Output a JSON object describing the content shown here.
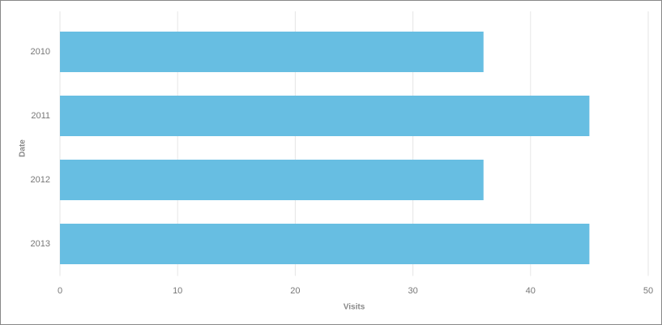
{
  "chart_data": {
    "type": "bar",
    "orientation": "horizontal",
    "x_label": "Visits",
    "y_label": "Date",
    "categories": [
      "2010",
      "2011",
      "2012",
      "2013"
    ],
    "values": [
      36,
      45,
      36,
      45
    ],
    "color": "#67bee2",
    "xlim": [
      0,
      50
    ],
    "xticks": [
      0,
      10,
      20,
      30,
      40,
      50
    ],
    "grid": true
  }
}
